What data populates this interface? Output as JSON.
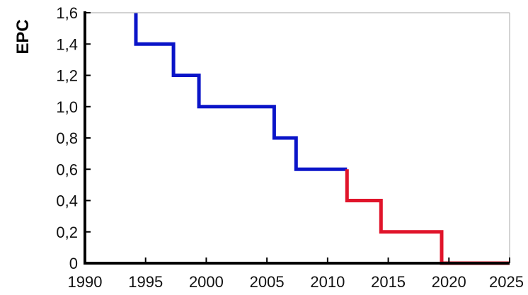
{
  "chart_data": {
    "type": "line",
    "title": "",
    "xlabel": "",
    "ylabel": "EPC",
    "xlim": [
      1990,
      2025
    ],
    "ylim": [
      0,
      1.6
    ],
    "x_ticks": [
      1990,
      1995,
      2000,
      2005,
      2010,
      2015,
      2020,
      2025
    ],
    "y_ticks": [
      0,
      0.2,
      0.4,
      0.6,
      0.8,
      1.0,
      1.2,
      1.4,
      1.6
    ],
    "x_tick_labels": [
      "1990",
      "1995",
      "2000",
      "2005",
      "2010",
      "2015",
      "2020",
      "2025"
    ],
    "y_tick_labels": [
      "0",
      "0,2",
      "0,4",
      "0,6",
      "0,8",
      "1,0",
      "1,2",
      "1,4",
      "1,6"
    ],
    "grid": false,
    "step": true,
    "series": [
      {
        "color": "#0a14c8",
        "points": [
          [
            1994.2,
            1.6
          ],
          [
            1994.2,
            1.4
          ],
          [
            1997.3,
            1.4
          ],
          [
            1997.3,
            1.2
          ],
          [
            1999.4,
            1.2
          ],
          [
            1999.4,
            1.0
          ],
          [
            2005.6,
            1.0
          ],
          [
            2005.6,
            0.8
          ],
          [
            2007.4,
            0.8
          ],
          [
            2007.4,
            0.6
          ],
          [
            2011.6,
            0.6
          ]
        ]
      },
      {
        "color": "#e0142a",
        "points": [
          [
            2011.6,
            0.6
          ],
          [
            2011.6,
            0.4
          ],
          [
            2014.4,
            0.4
          ],
          [
            2014.4,
            0.2
          ],
          [
            2019.4,
            0.2
          ],
          [
            2019.4,
            0.0
          ],
          [
            2025,
            0.0
          ]
        ]
      }
    ]
  }
}
